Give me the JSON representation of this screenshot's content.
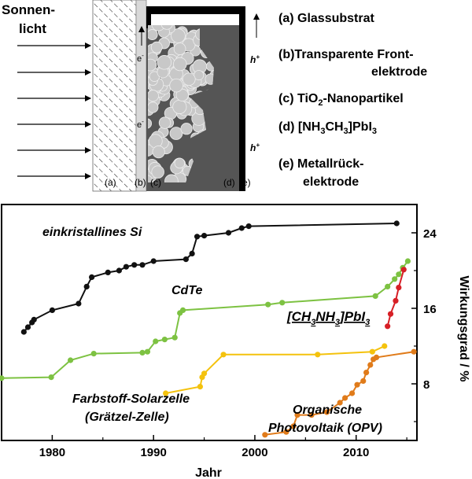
{
  "diagram": {
    "sunlight_label_1": "Sonnen-",
    "sunlight_label_2": "licht",
    "electron_label": "e",
    "electron_sup": "-",
    "hole_label": "h",
    "hole_sup": "+",
    "layer_tags": [
      "(a)",
      "(b)",
      "(c)",
      "(d)",
      "(e)"
    ],
    "legend": {
      "a": "(a) Glassubstrat",
      "b_1": "(b)Transparente Front-",
      "b_2": "elektrode",
      "c_pre": "(c) TiO",
      "c_sub": "2",
      "c_post": "-Nanopartikel",
      "d_pre": "(d) [NH",
      "d_sub1": "3",
      "d_mid": "CH",
      "d_sub2": "3",
      "d_post": "]PbI",
      "d_sub3": "3",
      "e_1": "(e) Metallrück-",
      "e_2": "elektrode"
    }
  },
  "colors": {
    "si": "#111111",
    "cdte": "#7dc242",
    "perovskite": "#d71f26",
    "dssc": "#f4c20d",
    "opv": "#e07b1a",
    "particle": "#c8c8c8",
    "electrolyte": "#555555"
  },
  "chart_data": {
    "type": "line",
    "xlabel": "Jahr",
    "ylabel": "Wirkungsgrad / %",
    "xlim": [
      1975,
      2016
    ],
    "ylim": [
      2,
      27
    ],
    "x_ticks": [
      1980,
      1990,
      2000,
      2010
    ],
    "y_ticks": [
      8,
      16,
      24
    ],
    "series": [
      {
        "name": "einkristallines Si",
        "color_key": "si",
        "points": [
          [
            1977.2,
            13.5
          ],
          [
            1977.6,
            14.0
          ],
          [
            1978.0,
            14.5
          ],
          [
            1978.2,
            14.8
          ],
          [
            1980.0,
            15.8
          ],
          [
            1982.6,
            16.5
          ],
          [
            1983.4,
            18.3
          ],
          [
            1983.9,
            19.3
          ],
          [
            1985.5,
            19.8
          ],
          [
            1986.6,
            20.0
          ],
          [
            1987.3,
            20.4
          ],
          [
            1988.1,
            20.6
          ],
          [
            1988.9,
            20.6
          ],
          [
            1990.0,
            21.0
          ],
          [
            1993.2,
            21.2
          ],
          [
            1993.8,
            21.8
          ],
          [
            1994.3,
            23.6
          ],
          [
            1995.0,
            23.7
          ],
          [
            1997.4,
            24.0
          ],
          [
            1998.7,
            24.5
          ],
          [
            1999.4,
            24.7
          ],
          [
            2014.0,
            25.0
          ]
        ]
      },
      {
        "name": "CdTe",
        "color_key": "cdte",
        "points": [
          [
            1975.0,
            8.6
          ],
          [
            1979.9,
            8.7
          ],
          [
            1981.8,
            10.5
          ],
          [
            1984.1,
            11.2
          ],
          [
            1988.9,
            11.3
          ],
          [
            1989.4,
            11.4
          ],
          [
            1990.2,
            12.5
          ],
          [
            1991.1,
            12.7
          ],
          [
            1992.1,
            12.9
          ],
          [
            1992.6,
            15.5
          ],
          [
            1992.9,
            15.8
          ],
          [
            2001.3,
            16.4
          ],
          [
            2002.7,
            16.6
          ],
          [
            2011.9,
            17.3
          ],
          [
            2013.1,
            18.3
          ],
          [
            2013.8,
            19.1
          ],
          [
            2014.2,
            19.6
          ],
          [
            2014.6,
            20.3
          ],
          [
            2015.1,
            21.0
          ]
        ]
      },
      {
        "name": "[CH3NH3]PbI3",
        "color_key": "perovskite",
        "points": [
          [
            2013.1,
            14.1
          ],
          [
            2013.4,
            15.4
          ],
          [
            2013.9,
            16.8
          ],
          [
            2014.2,
            18.2
          ],
          [
            2014.7,
            20.1
          ]
        ]
      },
      {
        "name": "Farbstoff-Solarzelle (Grätzel-Zelle)",
        "color_key": "dssc",
        "points": [
          [
            1991.2,
            7.0
          ],
          [
            1994.6,
            7.7
          ],
          [
            1994.8,
            8.7
          ],
          [
            1995.0,
            9.1
          ],
          [
            1996.9,
            11.1
          ],
          [
            2006.2,
            11.1
          ],
          [
            2011.6,
            11.4
          ],
          [
            2012.8,
            12.0
          ]
        ]
      },
      {
        "name": "Organische Photovoltaik (OPV)",
        "color_key": "opv",
        "points": [
          [
            2001.0,
            2.6
          ],
          [
            2003.1,
            2.9
          ],
          [
            2003.8,
            3.5
          ],
          [
            2004.2,
            4.7
          ],
          [
            2005.6,
            4.7
          ],
          [
            2007.1,
            5.0
          ],
          [
            2008.4,
            6.0
          ],
          [
            2008.9,
            6.5
          ],
          [
            2009.6,
            7.0
          ],
          [
            2010.1,
            7.9
          ],
          [
            2010.7,
            8.3
          ],
          [
            2011.0,
            9.2
          ],
          [
            2011.4,
            10.0
          ],
          [
            2011.7,
            10.6
          ],
          [
            2012.0,
            10.8
          ],
          [
            2015.7,
            11.4
          ]
        ]
      }
    ]
  }
}
